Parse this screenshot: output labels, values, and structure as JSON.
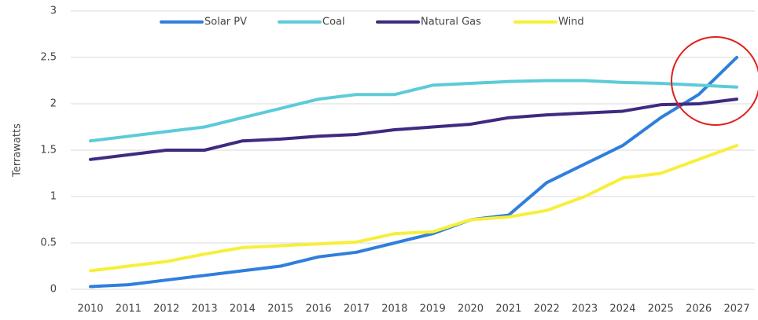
{
  "chart_data": {
    "type": "line",
    "y_label": "Terrawatts",
    "categories": [
      "2010",
      "2011",
      "2012",
      "2013",
      "2014",
      "2015",
      "2016",
      "2017",
      "2018",
      "2019",
      "2020",
      "2021",
      "2022",
      "2023",
      "2024",
      "2025",
      "2026",
      "2027"
    ],
    "series": [
      {
        "name": "Solar PV",
        "color": "#2f7fdc",
        "values": [
          0.03,
          0.05,
          0.1,
          0.15,
          0.2,
          0.25,
          0.35,
          0.4,
          0.5,
          0.6,
          0.75,
          0.8,
          1.15,
          1.35,
          1.55,
          1.85,
          2.1,
          2.5
        ]
      },
      {
        "name": "Coal",
        "color": "#5ccbd8",
        "values": [
          1.6,
          1.65,
          1.7,
          1.75,
          1.85,
          1.95,
          2.05,
          2.1,
          2.1,
          2.2,
          2.22,
          2.24,
          2.25,
          2.25,
          2.23,
          2.22,
          2.2,
          2.18
        ]
      },
      {
        "name": "Natural Gas",
        "color": "#3f2a80",
        "values": [
          1.4,
          1.45,
          1.5,
          1.5,
          1.6,
          1.62,
          1.65,
          1.67,
          1.72,
          1.75,
          1.78,
          1.85,
          1.88,
          1.9,
          1.92,
          1.99,
          2.0,
          2.05
        ]
      },
      {
        "name": "Wind",
        "color": "#f7ef3a",
        "values": [
          0.2,
          0.25,
          0.3,
          0.38,
          0.45,
          0.47,
          0.49,
          0.51,
          0.6,
          0.62,
          0.75,
          0.78,
          0.85,
          1.0,
          1.2,
          1.25,
          1.4,
          1.55
        ]
      }
    ],
    "ylim": [
      0,
      3
    ],
    "yticks": [
      0,
      0.5,
      1,
      1.5,
      2,
      2.5,
      3
    ],
    "grid": true,
    "legend": "top"
  }
}
